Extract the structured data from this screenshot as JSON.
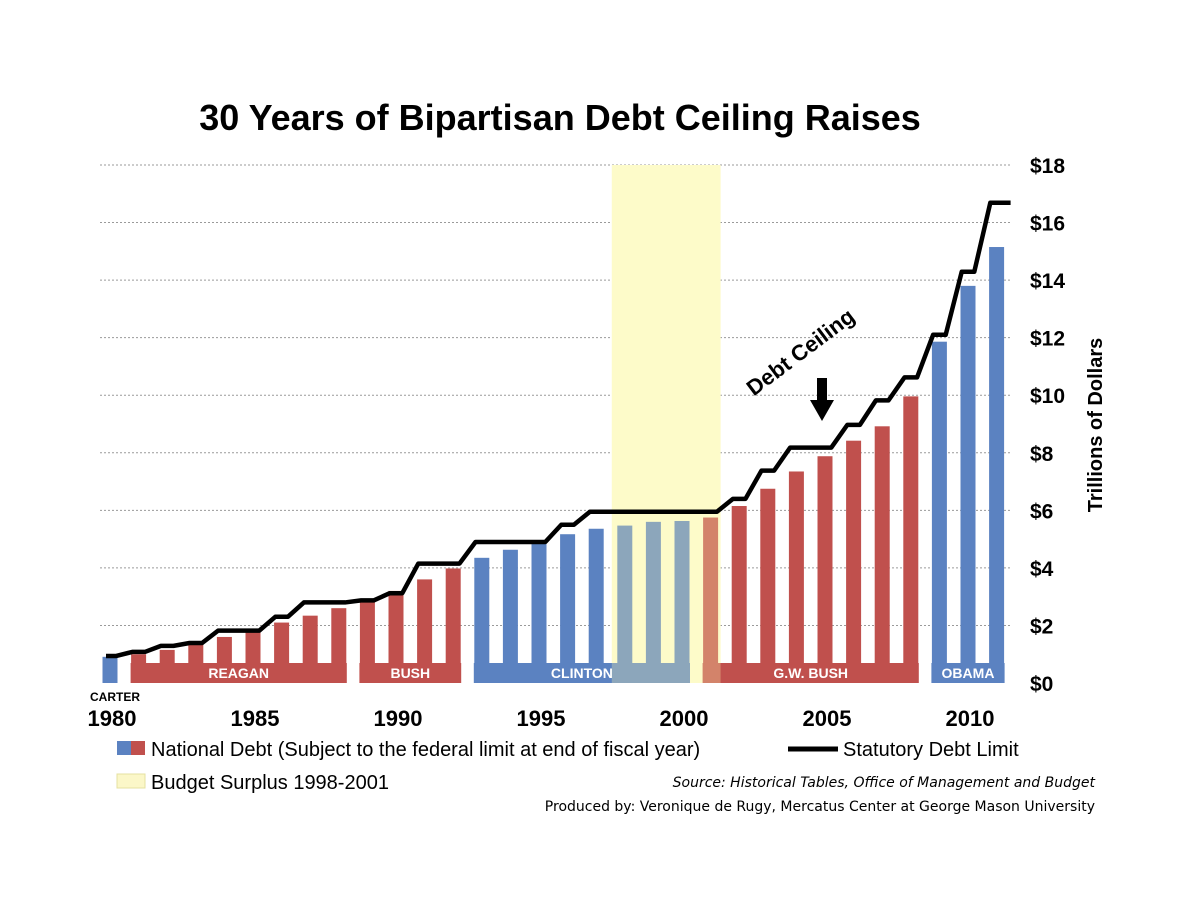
{
  "chart_data": {
    "type": "bar",
    "title": "30 Years of Bipartisan Debt Ceiling Raises",
    "ylabel": "Trillions of Dollars",
    "ylim": [
      0,
      18
    ],
    "yticks": [
      "$0",
      "$2",
      "$4",
      "$6",
      "$8",
      "$10",
      "$12",
      "$14",
      "$16",
      "$18"
    ],
    "xticks": [
      "1980",
      "1985",
      "1990",
      "1995",
      "2000",
      "2005",
      "2010"
    ],
    "grid": true,
    "colors": {
      "democrat": "#5b82c1",
      "republican": "#c0504d",
      "line": "#000000",
      "surplus": "#fdfbd4",
      "grid": "#9a9a9a"
    },
    "years": [
      1980,
      1981,
      1982,
      1983,
      1984,
      1985,
      1986,
      1987,
      1988,
      1989,
      1990,
      1991,
      1992,
      1993,
      1994,
      1995,
      1996,
      1997,
      1998,
      1999,
      2000,
      2001,
      2002,
      2003,
      2004,
      2005,
      2006,
      2007,
      2008,
      2009,
      2010,
      2011
    ],
    "series": [
      {
        "name": "National Debt (Subject to the federal limit at end of fiscal year)",
        "kind": "bar",
        "values": [
          0.91,
          1.0,
          1.15,
          1.38,
          1.6,
          1.83,
          2.1,
          2.34,
          2.6,
          2.87,
          3.2,
          3.6,
          3.98,
          4.35,
          4.63,
          4.9,
          5.17,
          5.36,
          5.47,
          5.6,
          5.63,
          5.75,
          6.15,
          6.75,
          7.35,
          7.88,
          8.42,
          8.92,
          9.96,
          11.86,
          13.8,
          15.15
        ],
        "party": [
          "D",
          "R",
          "R",
          "R",
          "R",
          "R",
          "R",
          "R",
          "R",
          "R",
          "R",
          "R",
          "R",
          "D",
          "D",
          "D",
          "D",
          "D",
          "D",
          "D",
          "D",
          "R",
          "R",
          "R",
          "R",
          "R",
          "R",
          "R",
          "R",
          "D",
          "D",
          "D"
        ]
      },
      {
        "name": "Statutory Debt Limit",
        "kind": "step-line",
        "values": [
          0.94,
          1.08,
          1.29,
          1.39,
          1.82,
          1.82,
          2.3,
          2.8,
          2.8,
          2.87,
          3.12,
          4.15,
          4.15,
          4.9,
          4.9,
          4.9,
          5.5,
          5.95,
          5.95,
          5.95,
          5.95,
          5.95,
          6.4,
          7.38,
          8.18,
          8.18,
          8.97,
          9.82,
          10.62,
          12.1,
          14.29,
          16.69
        ]
      }
    ],
    "surplus_band": {
      "label": "Budget Surplus 1998-2001",
      "start_year": 1998,
      "end_year": 2001
    },
    "eras": [
      {
        "label": "CARTER",
        "start": 1980,
        "end": 1980,
        "party": "D"
      },
      {
        "label": "REAGAN",
        "start": 1981,
        "end": 1988,
        "party": "R"
      },
      {
        "label": "BUSH",
        "start": 1989,
        "end": 1992,
        "party": "R"
      },
      {
        "label": "CLINTON",
        "start": 1993,
        "end": 2000,
        "party": "D"
      },
      {
        "label": "G.W. BUSH",
        "start": 2001,
        "end": 2008,
        "party": "R"
      },
      {
        "label": "OBAMA",
        "start": 2009,
        "end": 2011,
        "party": "D"
      }
    ],
    "annotation": {
      "text": "Debt Ceiling",
      "year": 2005
    },
    "legend": {
      "debt": "National Debt (Subject to the federal limit at end of fiscal year)",
      "limit": "Statutory Debt Limit",
      "surplus": "Budget Surplus 1998-2001"
    },
    "source": "Source: Historical Tables, Office of Management and Budget",
    "credit": "Produced by: Veronique de Rugy, Mercatus Center at George Mason University"
  }
}
